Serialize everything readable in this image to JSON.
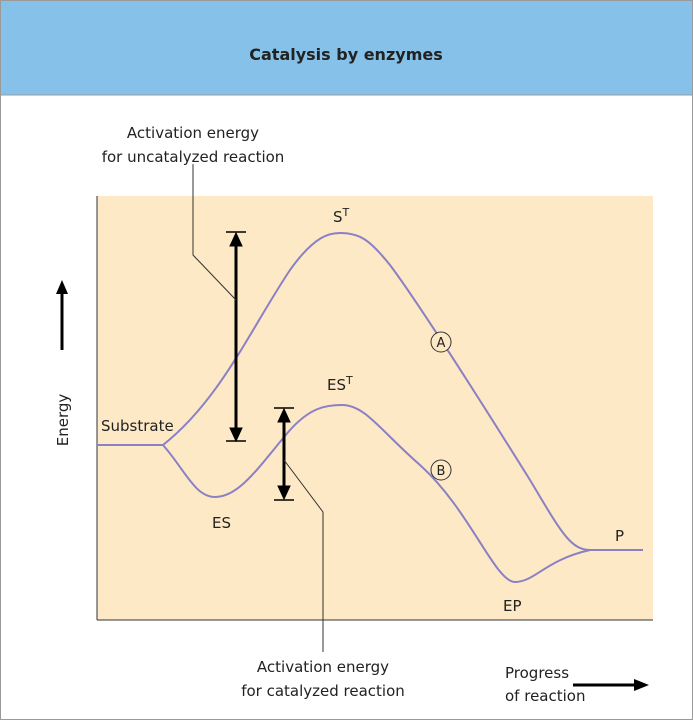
{
  "header": {
    "title": "Catalysis by enzymes"
  },
  "axes": {
    "y_label": "Energy",
    "x_label": [
      "Progress",
      "of reaction"
    ]
  },
  "annotations": {
    "uncatalyzed": [
      "Activation energy",
      "for uncatalyzed reaction"
    ],
    "catalyzed": [
      "Activation energy",
      "for catalyzed reaction"
    ]
  },
  "labels": {
    "substrate": "Substrate",
    "transition_uncatalyzed": {
      "base": "S",
      "sup": "T"
    },
    "transition_catalyzed": {
      "base": "ES",
      "sup": "T"
    },
    "es": "ES",
    "ep": "EP",
    "product": "P",
    "curve_a": "A",
    "curve_b": "B"
  }
}
